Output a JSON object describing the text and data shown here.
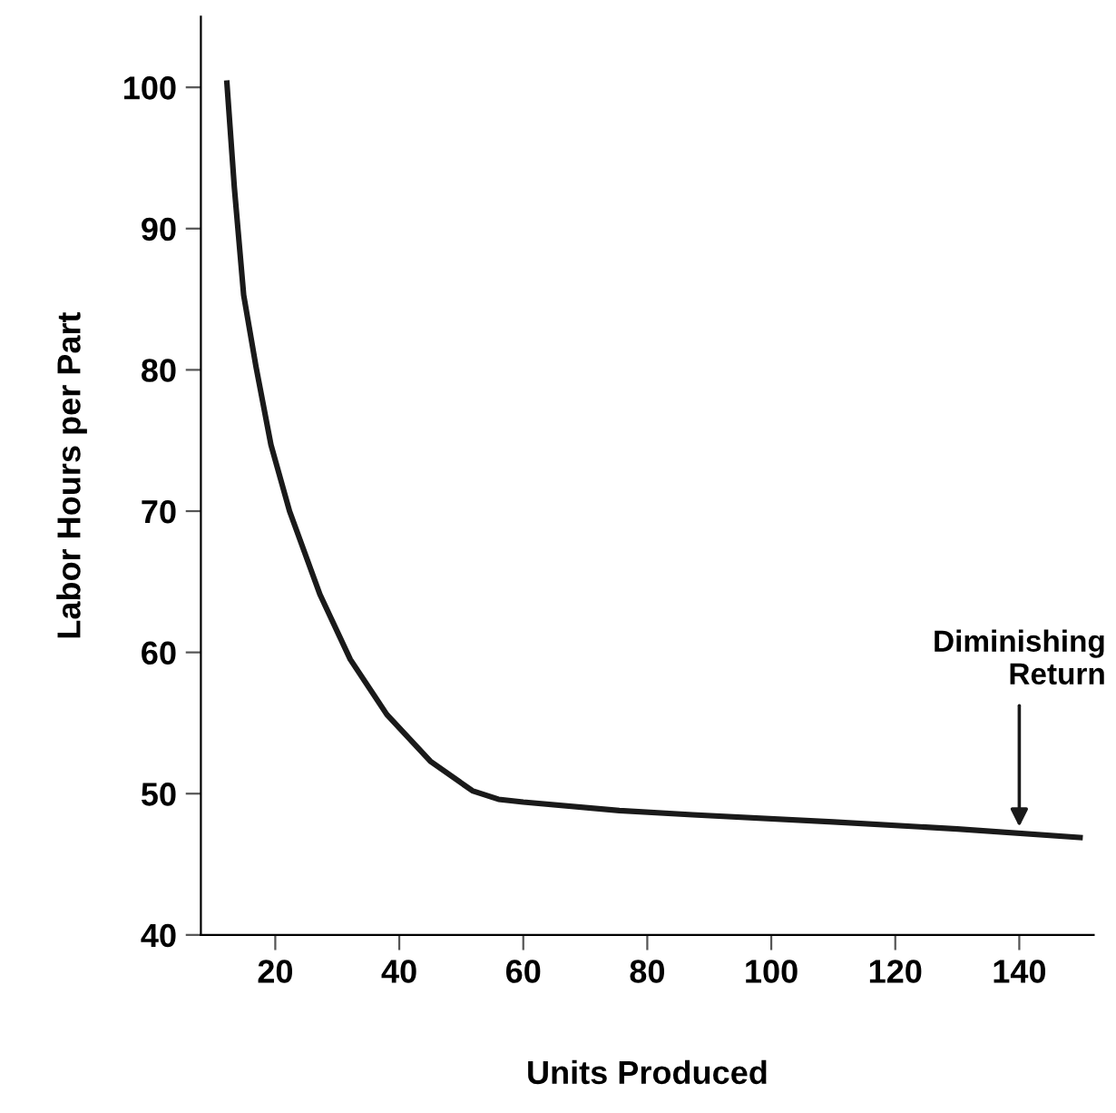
{
  "chart_data": {
    "type": "line",
    "xlabel": "Units Produced",
    "ylabel": "Labor Hours per Part",
    "x": [
      12.2,
      13.4,
      14.9,
      16.9,
      19.3,
      22.3,
      27.2,
      32.1,
      38.0,
      45.0,
      51.8,
      56.0,
      60.0,
      75.5,
      87.3,
      110.0,
      130.0,
      149.8
    ],
    "series": [
      {
        "color": "#1a1a1a",
        "values": [
          100.3,
          92.9,
          85.3,
          80.2,
          74.7,
          70.0,
          64.1,
          59.5,
          55.6,
          52.3,
          50.2,
          49.6,
          49.4,
          48.8,
          48.5,
          48.0,
          47.5,
          46.9
        ]
      }
    ],
    "xlim": [
      8,
      152
    ],
    "ylim": [
      40,
      105
    ],
    "xticks": [
      20,
      40,
      60,
      80,
      100,
      120,
      140
    ],
    "yticks": [
      40,
      50,
      60,
      70,
      80,
      90,
      100
    ],
    "annotations": [
      {
        "text": "Diminishing\nReturn",
        "x": 140,
        "y": 47.3
      }
    ],
    "grid": false,
    "legend": false,
    "marker": "none",
    "line_style": "solid"
  }
}
